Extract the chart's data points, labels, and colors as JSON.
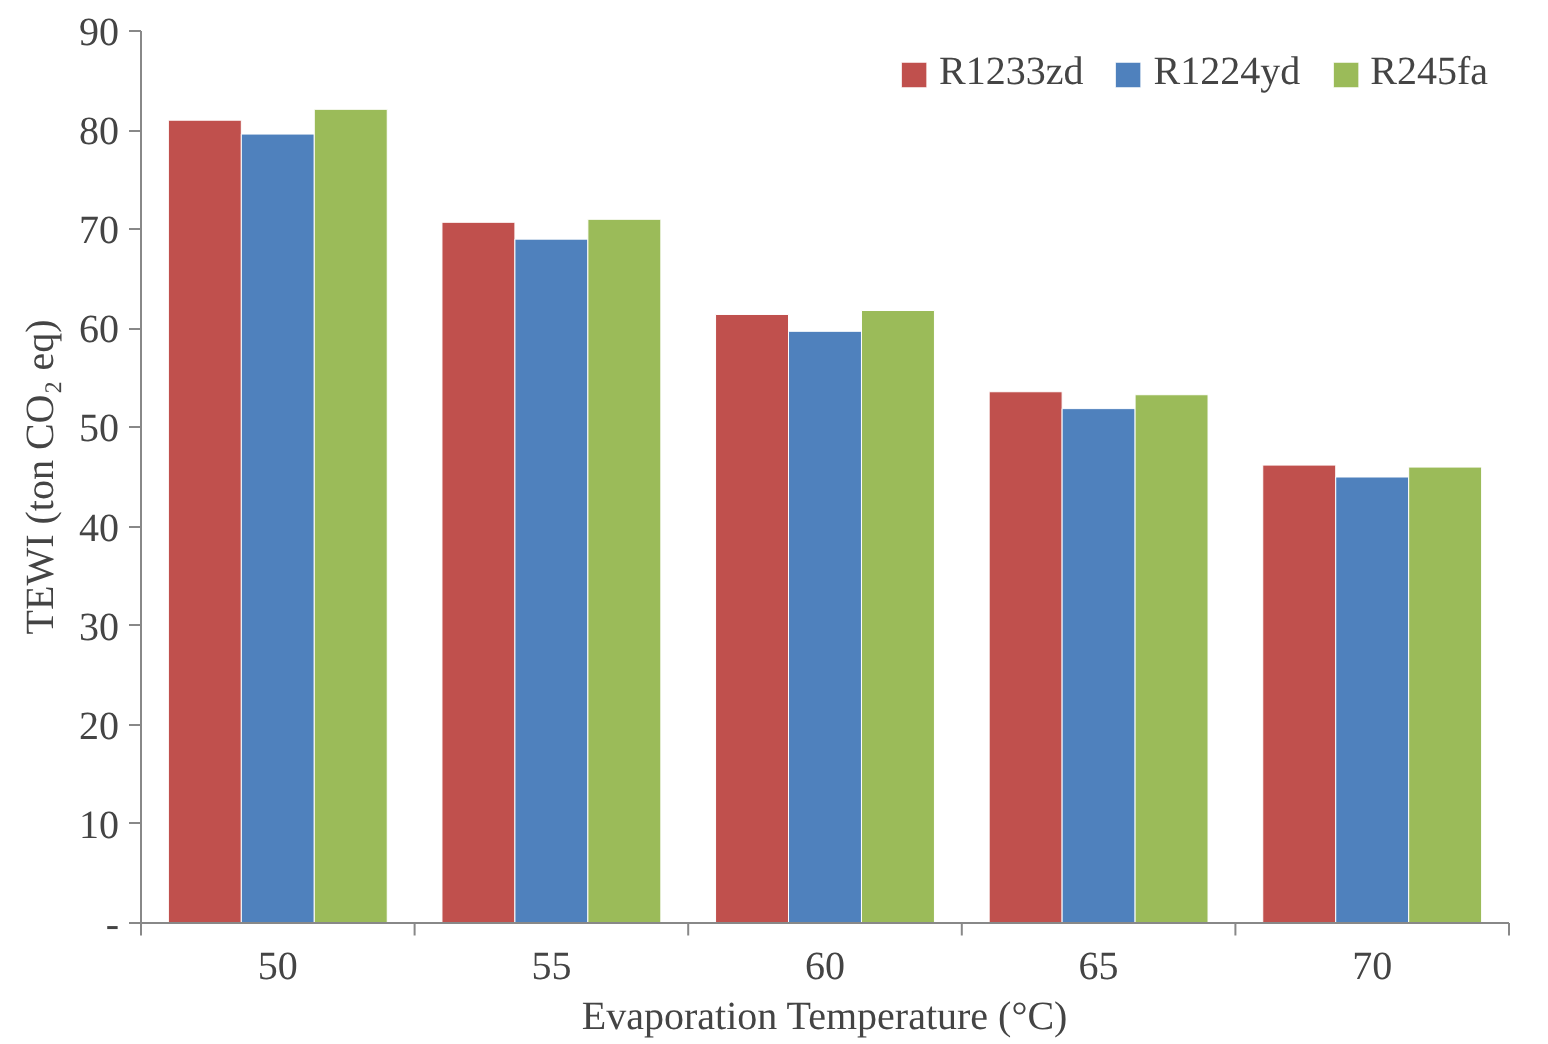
{
  "chart_data": {
    "type": "bar",
    "xlabel": "Evaporation Temperature (°C)",
    "ylabel": "TEWI (ton CO₂ eq)",
    "categories": [
      "50",
      "55",
      "60",
      "65",
      "70"
    ],
    "series": [
      {
        "name": "R1233zd",
        "color": "#c0504d",
        "values": [
          81.0,
          70.7,
          61.4,
          53.6,
          46.2
        ]
      },
      {
        "name": "R1224yd",
        "color": "#4f81bd",
        "values": [
          79.6,
          69.0,
          59.7,
          51.9,
          45.0
        ]
      },
      {
        "name": "R245fa",
        "color": "#9bbb59",
        "values": [
          82.1,
          71.0,
          61.8,
          53.3,
          46.0
        ]
      }
    ],
    "ylim": [
      0,
      90
    ],
    "yticks": [
      {
        "value": 0,
        "label": "-"
      },
      10,
      20,
      30,
      40,
      50,
      60,
      70,
      80,
      90
    ],
    "grid": false,
    "legend": "top right"
  }
}
